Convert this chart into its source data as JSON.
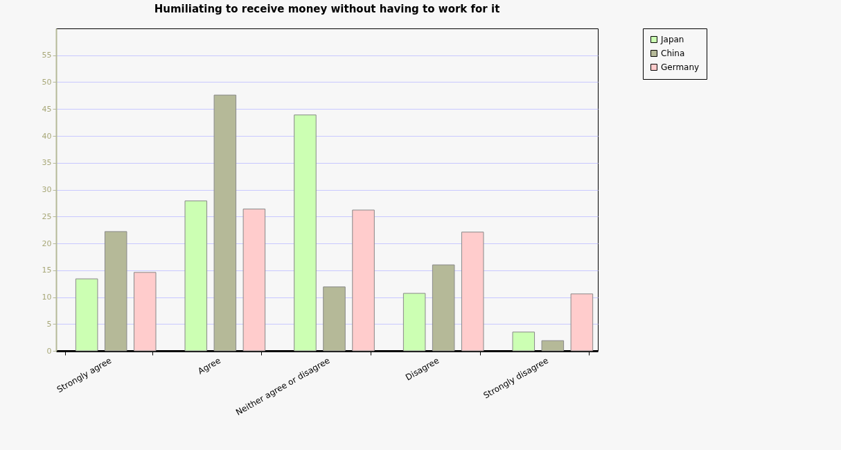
{
  "chart_data": {
    "type": "bar",
    "title": "Humiliating to receive money without having to work for it",
    "categories": [
      "Strongly agree",
      "Agree",
      "Neither agree or disagree",
      "Disagree",
      "Strongly disagree"
    ],
    "series": [
      {
        "name": "Japan",
        "color": "#ccffb3",
        "values": [
          13.4,
          27.9,
          43.9,
          10.7,
          3.5
        ]
      },
      {
        "name": "China",
        "color": "#b5b998",
        "values": [
          22.2,
          47.6,
          11.9,
          16,
          1.9
        ]
      },
      {
        "name": "Germany",
        "color": "#ffcccc",
        "values": [
          14.6,
          26.4,
          26.2,
          22.1,
          10.6
        ]
      }
    ],
    "ylim": [
      0,
      60
    ],
    "yticks": [
      0,
      5,
      10,
      15,
      20,
      25,
      30,
      35,
      40,
      45,
      50,
      55
    ],
    "grid": "y",
    "legend": "right"
  }
}
